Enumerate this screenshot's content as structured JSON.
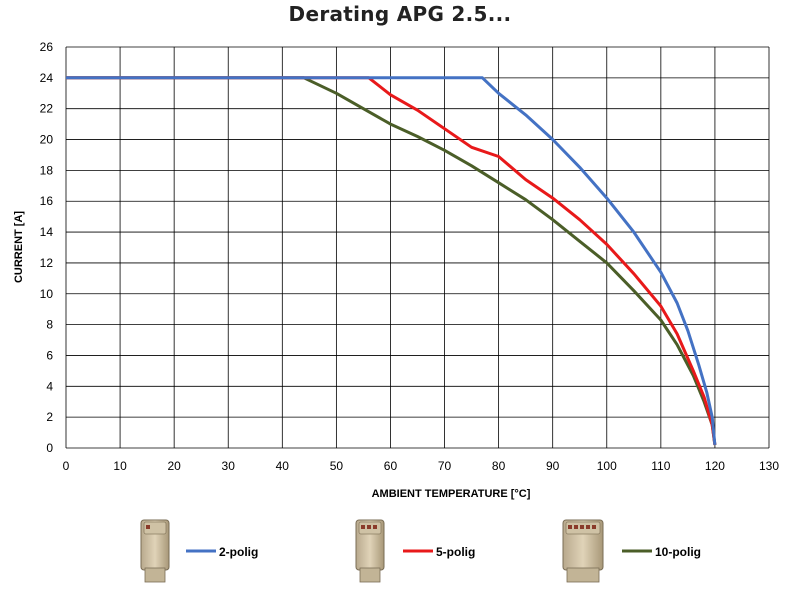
{
  "chart_data": {
    "type": "line",
    "title": "Derating APG 2.5...",
    "xlabel": "AMBIENT TEMPERATURE [°C]",
    "ylabel": "CURRENT [A]",
    "xlim": [
      0,
      130
    ],
    "ylim": [
      0,
      26
    ],
    "xticks": [
      0,
      10,
      20,
      30,
      40,
      50,
      60,
      70,
      80,
      90,
      100,
      110,
      120,
      130
    ],
    "yticks": [
      0,
      2,
      4,
      6,
      8,
      10,
      12,
      14,
      16,
      18,
      20,
      22,
      24,
      26
    ],
    "grid": true,
    "legend_position": "bottom",
    "series": [
      {
        "name": "2-polig",
        "color": "#4472C4",
        "icon": "2-pin-connector",
        "points": [
          [
            0,
            24
          ],
          [
            77,
            24
          ],
          [
            80,
            23
          ],
          [
            85,
            21.6
          ],
          [
            90,
            20
          ],
          [
            95,
            18.2
          ],
          [
            100,
            16.2
          ],
          [
            105,
            14
          ],
          [
            110,
            11.4
          ],
          [
            113,
            9.4
          ],
          [
            115,
            7.6
          ],
          [
            117,
            5.4
          ],
          [
            118.5,
            3.6
          ],
          [
            119.5,
            2
          ],
          [
            120,
            0.2
          ]
        ]
      },
      {
        "name": "5-polig",
        "color": "#E8191A",
        "icon": "5-pin-connector",
        "points": [
          [
            0,
            24
          ],
          [
            56,
            24
          ],
          [
            60,
            22.9
          ],
          [
            65,
            21.9
          ],
          [
            70,
            20.7
          ],
          [
            75,
            19.5
          ],
          [
            80,
            18.9
          ],
          [
            85,
            17.4
          ],
          [
            90,
            16.2
          ],
          [
            95,
            14.8
          ],
          [
            100,
            13.2
          ],
          [
            105,
            11.3
          ],
          [
            110,
            9.2
          ],
          [
            113,
            7.4
          ],
          [
            116,
            5
          ],
          [
            118,
            3.3
          ],
          [
            119.5,
            1.5
          ],
          [
            120,
            0.2
          ]
        ]
      },
      {
        "name": "10-polig",
        "color": "#4B5E28",
        "icon": "10-pin-connector",
        "points": [
          [
            0,
            24
          ],
          [
            44,
            24
          ],
          [
            50,
            23
          ],
          [
            55,
            22
          ],
          [
            60,
            21
          ],
          [
            65,
            20.2
          ],
          [
            70,
            19.3
          ],
          [
            75,
            18.3
          ],
          [
            80,
            17.2
          ],
          [
            85,
            16.1
          ],
          [
            90,
            14.8
          ],
          [
            95,
            13.4
          ],
          [
            100,
            12
          ],
          [
            105,
            10.2
          ],
          [
            110,
            8.3
          ],
          [
            113,
            6.7
          ],
          [
            116,
            4.7
          ],
          [
            118,
            3
          ],
          [
            119.5,
            1.5
          ],
          [
            120,
            0.2
          ]
        ]
      }
    ]
  }
}
